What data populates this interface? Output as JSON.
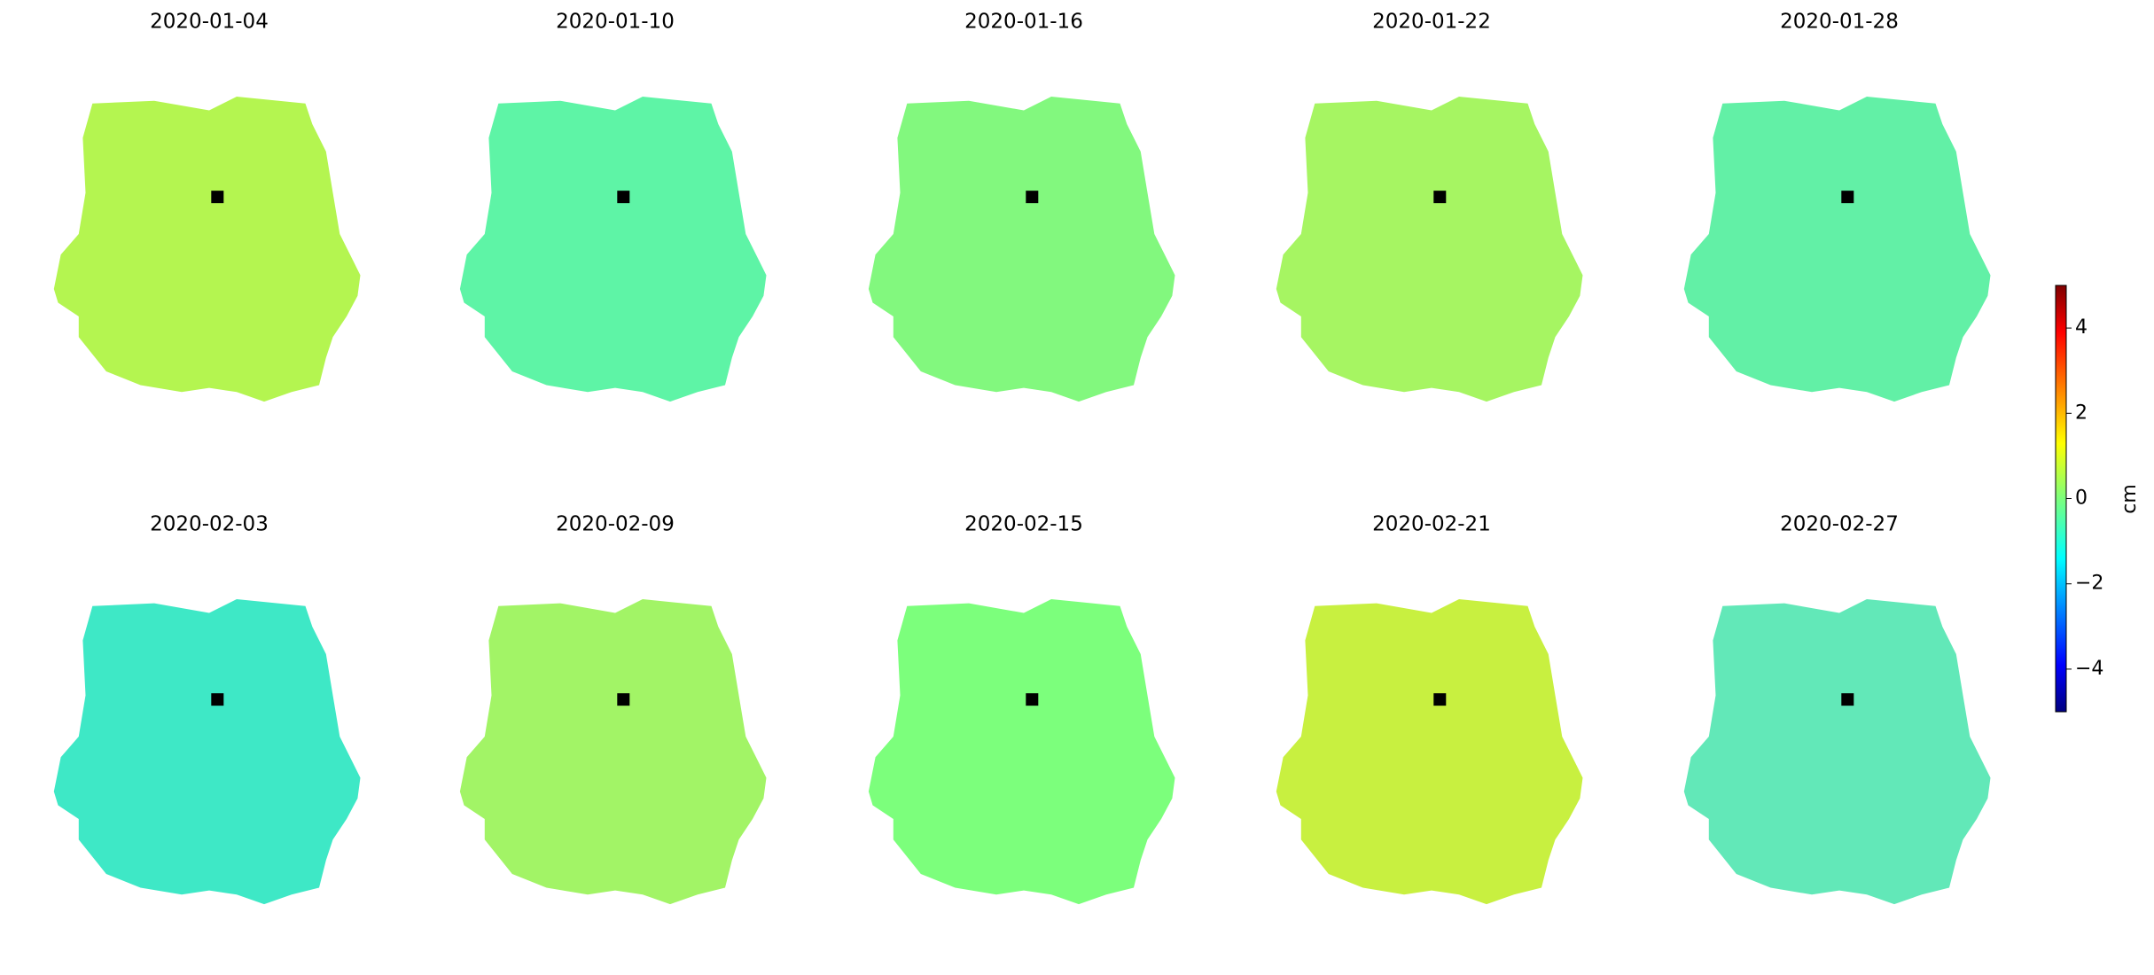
{
  "chart_data": {
    "type": "image-grid",
    "panels": [
      {
        "title": "2020-01-04",
        "color": "#b4f550"
      },
      {
        "title": "2020-01-10",
        "color": "#5ef4a6"
      },
      {
        "title": "2020-01-16",
        "color": "#82f87e"
      },
      {
        "title": "2020-01-22",
        "color": "#a6f562"
      },
      {
        "title": "2020-01-28",
        "color": "#62f0a6"
      },
      {
        "title": "2020-02-03",
        "color": "#3ee8c6"
      },
      {
        "title": "2020-02-09",
        "color": "#a2f466"
      },
      {
        "title": "2020-02-15",
        "color": "#7cff7c"
      },
      {
        "title": "2020-02-21",
        "color": "#c8f040"
      },
      {
        "title": "2020-02-27",
        "color": "#62e8b8"
      }
    ],
    "colorbar": {
      "label": "cm",
      "lim": [
        -5,
        5
      ],
      "ticks": [
        {
          "value": -4,
          "label": "−4"
        },
        {
          "value": -2,
          "label": "−2"
        },
        0,
        2,
        4
      ]
    }
  }
}
